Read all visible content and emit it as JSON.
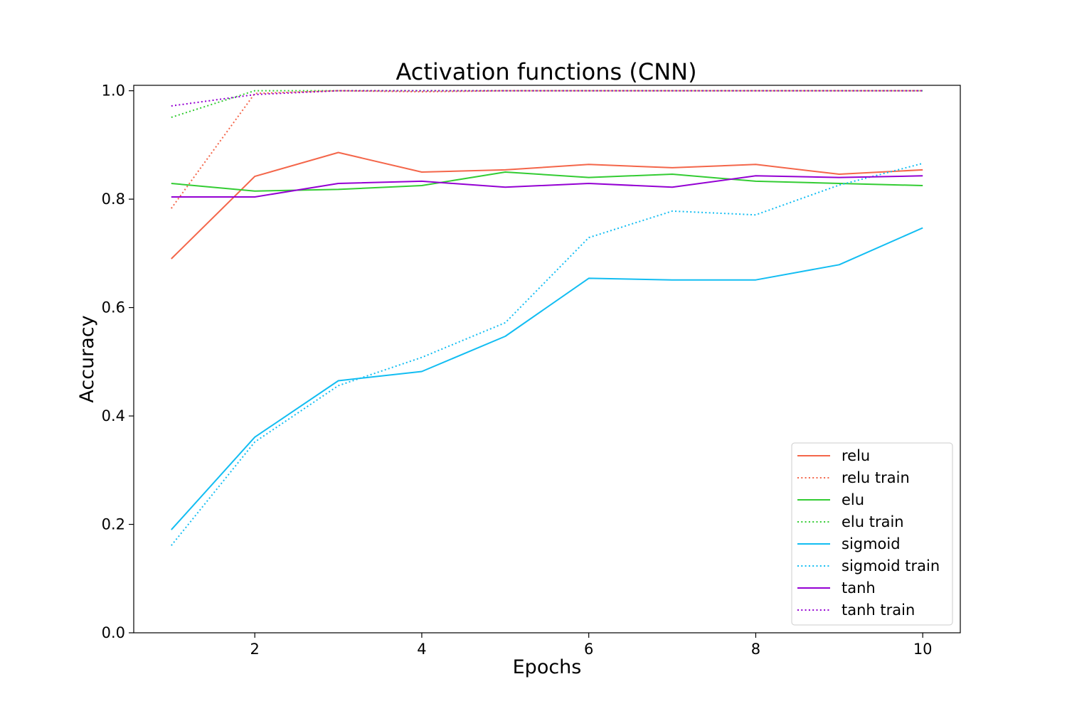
{
  "chart_data": {
    "type": "line",
    "title": "Activation functions (CNN)",
    "xlabel": "Epochs",
    "ylabel": "Accuracy",
    "xlim": [
      0.55,
      10.45
    ],
    "ylim": [
      0.0,
      1.01
    ],
    "xticks": [
      2,
      4,
      6,
      8,
      10
    ],
    "yticks": [
      0.0,
      0.2,
      0.4,
      0.6,
      0.8,
      1.0
    ],
    "xtick_labels": [
      "2",
      "4",
      "6",
      "8",
      "10"
    ],
    "ytick_labels": [
      "0.0",
      "0.2",
      "0.4",
      "0.6",
      "0.8",
      "1.0"
    ],
    "grid": false,
    "legend_position": "lower-right",
    "x": [
      1,
      2,
      3,
      4,
      5,
      6,
      7,
      8,
      9,
      10
    ],
    "series": [
      {
        "name": "relu",
        "style": "solid",
        "color": "#f4664a",
        "values": [
          0.69,
          0.842,
          0.886,
          0.85,
          0.854,
          0.864,
          0.858,
          0.864,
          0.846,
          0.854
        ]
      },
      {
        "name": "relu train",
        "style": "dotted",
        "color": "#f4664a",
        "values": [
          0.783,
          0.995,
          1.0,
          0.998,
          1.0,
          1.0,
          1.0,
          1.0,
          1.0,
          1.0
        ]
      },
      {
        "name": "elu",
        "style": "solid",
        "color": "#33cc33",
        "values": [
          0.829,
          0.815,
          0.818,
          0.825,
          0.85,
          0.84,
          0.846,
          0.833,
          0.829,
          0.825
        ]
      },
      {
        "name": "elu train",
        "style": "dotted",
        "color": "#33cc33",
        "values": [
          0.951,
          1.0,
          1.0,
          1.0,
          1.0,
          1.0,
          1.0,
          1.0,
          1.0,
          1.0
        ]
      },
      {
        "name": "sigmoid",
        "style": "solid",
        "color": "#12bdf2",
        "values": [
          0.19,
          0.361,
          0.465,
          0.482,
          0.547,
          0.654,
          0.651,
          0.651,
          0.679,
          0.747
        ]
      },
      {
        "name": "sigmoid train",
        "style": "dotted",
        "color": "#12bdf2",
        "values": [
          0.161,
          0.352,
          0.456,
          0.508,
          0.572,
          0.729,
          0.778,
          0.771,
          0.826,
          0.866
        ]
      },
      {
        "name": "tanh",
        "style": "solid",
        "color": "#9400d3",
        "values": [
          0.804,
          0.804,
          0.829,
          0.833,
          0.822,
          0.829,
          0.822,
          0.843,
          0.84,
          0.843
        ]
      },
      {
        "name": "tanh train",
        "style": "dotted",
        "color": "#9400d3",
        "values": [
          0.972,
          0.993,
          1.0,
          1.0,
          1.0,
          1.0,
          1.0,
          1.0,
          1.0,
          1.0
        ]
      }
    ]
  }
}
